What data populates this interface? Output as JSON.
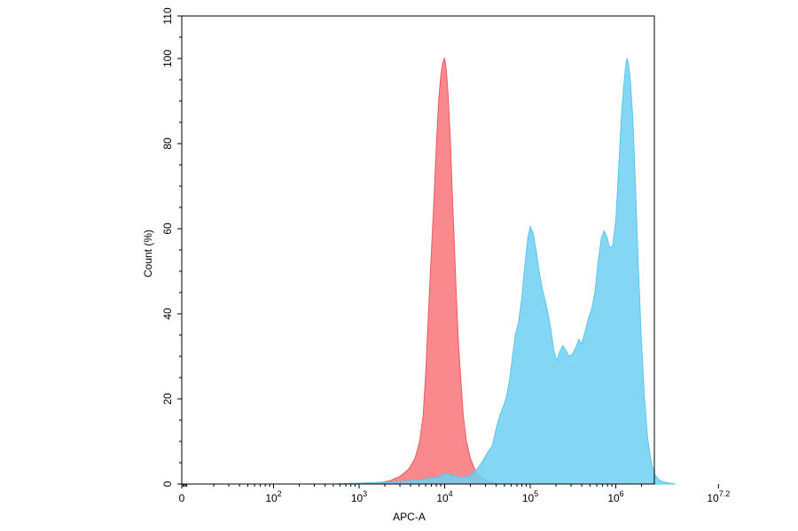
{
  "chart_data": {
    "type": "area",
    "title": "",
    "xlabel": "APC-A",
    "ylabel": "Count (%)",
    "x_scale": "log",
    "xlim": [
      0,
      7.2
    ],
    "ylim": [
      0,
      110
    ],
    "grid": false,
    "legend": "none",
    "y_ticks": [
      {
        "value": 0,
        "label": "0"
      },
      {
        "value": 20,
        "label": "20"
      },
      {
        "value": 40,
        "label": "40"
      },
      {
        "value": 60,
        "label": "60"
      },
      {
        "value": 80,
        "label": "80"
      },
      {
        "value": 100,
        "label": "100"
      },
      {
        "value": 110,
        "label": "110"
      }
    ],
    "x_ticks": [
      {
        "label": "0",
        "base": "",
        "exp": ""
      },
      {
        "label": "",
        "base": "10",
        "exp": "2"
      },
      {
        "label": "",
        "base": "10",
        "exp": "3"
      },
      {
        "label": "",
        "base": "10",
        "exp": "4"
      },
      {
        "label": "",
        "base": "10",
        "exp": "5"
      },
      {
        "label": "",
        "base": "10",
        "exp": "6"
      },
      {
        "label": "",
        "base": "10",
        "exp": "7.2"
      }
    ],
    "series": [
      {
        "color": "#f87478",
        "stroke": "#ea5a62",
        "opacity": 0.85,
        "points": [
          {
            "x": 500,
            "y": 0
          },
          {
            "x": 1700,
            "y": 0.3
          },
          {
            "x": 2300,
            "y": 0.8
          },
          {
            "x": 3000,
            "y": 1.8
          },
          {
            "x": 3800,
            "y": 3.5
          },
          {
            "x": 4500,
            "y": 6
          },
          {
            "x": 5100,
            "y": 10
          },
          {
            "x": 5600,
            "y": 16
          },
          {
            "x": 6000,
            "y": 26
          },
          {
            "x": 6300,
            "y": 35
          },
          {
            "x": 6600,
            "y": 44
          },
          {
            "x": 6900,
            "y": 52
          },
          {
            "x": 7300,
            "y": 62
          },
          {
            "x": 7700,
            "y": 72
          },
          {
            "x": 8100,
            "y": 82
          },
          {
            "x": 8500,
            "y": 90
          },
          {
            "x": 9000,
            "y": 96
          },
          {
            "x": 9500,
            "y": 99
          },
          {
            "x": 10000,
            "y": 100
          },
          {
            "x": 10500,
            "y": 97
          },
          {
            "x": 11000,
            "y": 91
          },
          {
            "x": 11600,
            "y": 82
          },
          {
            "x": 12200,
            "y": 70
          },
          {
            "x": 13000,
            "y": 56
          },
          {
            "x": 13700,
            "y": 44
          },
          {
            "x": 14500,
            "y": 33
          },
          {
            "x": 15500,
            "y": 24
          },
          {
            "x": 16500,
            "y": 16
          },
          {
            "x": 18000,
            "y": 10
          },
          {
            "x": 20000,
            "y": 6
          },
          {
            "x": 23000,
            "y": 3
          },
          {
            "x": 27000,
            "y": 1.5
          },
          {
            "x": 34000,
            "y": 0.5
          },
          {
            "x": 45000,
            "y": 0
          }
        ]
      },
      {
        "color": "#6ed0f2",
        "stroke": "#5ec4ea",
        "opacity": 0.85,
        "points": [
          {
            "x": 500,
            "y": 0
          },
          {
            "x": 1300,
            "y": 0.3
          },
          {
            "x": 3000,
            "y": 0.6
          },
          {
            "x": 5000,
            "y": 1
          },
          {
            "x": 8000,
            "y": 1.5
          },
          {
            "x": 10000,
            "y": 2.5
          },
          {
            "x": 13000,
            "y": 2
          },
          {
            "x": 16000,
            "y": 1.5
          },
          {
            "x": 20000,
            "y": 2
          },
          {
            "x": 24000,
            "y": 3.5
          },
          {
            "x": 28000,
            "y": 5.5
          },
          {
            "x": 32000,
            "y": 7.5
          },
          {
            "x": 36000,
            "y": 9
          },
          {
            "x": 40000,
            "y": 13
          },
          {
            "x": 44000,
            "y": 16
          },
          {
            "x": 48000,
            "y": 18
          },
          {
            "x": 52000,
            "y": 20
          },
          {
            "x": 57000,
            "y": 24
          },
          {
            "x": 62000,
            "y": 30
          },
          {
            "x": 67000,
            "y": 35
          },
          {
            "x": 73000,
            "y": 38
          },
          {
            "x": 80000,
            "y": 44
          },
          {
            "x": 87000,
            "y": 52
          },
          {
            "x": 94000,
            "y": 58
          },
          {
            "x": 100000,
            "y": 60.5
          },
          {
            "x": 108000,
            "y": 59
          },
          {
            "x": 117000,
            "y": 55
          },
          {
            "x": 127000,
            "y": 50
          },
          {
            "x": 138000,
            "y": 46
          },
          {
            "x": 150000,
            "y": 43
          },
          {
            "x": 162000,
            "y": 40
          },
          {
            "x": 175000,
            "y": 36
          },
          {
            "x": 190000,
            "y": 31
          },
          {
            "x": 205000,
            "y": 29
          },
          {
            "x": 220000,
            "y": 31
          },
          {
            "x": 240000,
            "y": 32.5
          },
          {
            "x": 260000,
            "y": 31.5
          },
          {
            "x": 285000,
            "y": 30
          },
          {
            "x": 310000,
            "y": 30.5
          },
          {
            "x": 340000,
            "y": 32
          },
          {
            "x": 370000,
            "y": 34
          },
          {
            "x": 400000,
            "y": 33
          },
          {
            "x": 440000,
            "y": 36
          },
          {
            "x": 480000,
            "y": 39
          },
          {
            "x": 520000,
            "y": 41
          },
          {
            "x": 570000,
            "y": 45
          },
          {
            "x": 620000,
            "y": 52
          },
          {
            "x": 680000,
            "y": 58
          },
          {
            "x": 730000,
            "y": 59.5
          },
          {
            "x": 790000,
            "y": 58
          },
          {
            "x": 850000,
            "y": 55.5
          },
          {
            "x": 920000,
            "y": 56
          },
          {
            "x": 1000000,
            "y": 62
          },
          {
            "x": 1080000,
            "y": 74
          },
          {
            "x": 1160000,
            "y": 86
          },
          {
            "x": 1230000,
            "y": 93
          },
          {
            "x": 1300000,
            "y": 98
          },
          {
            "x": 1350000,
            "y": 100
          },
          {
            "x": 1400000,
            "y": 99
          },
          {
            "x": 1480000,
            "y": 95
          },
          {
            "x": 1580000,
            "y": 86
          },
          {
            "x": 1700000,
            "y": 70
          },
          {
            "x": 1830000,
            "y": 52
          },
          {
            "x": 1980000,
            "y": 35
          },
          {
            "x": 2150000,
            "y": 21
          },
          {
            "x": 2350000,
            "y": 11
          },
          {
            "x": 2600000,
            "y": 5
          },
          {
            "x": 2900000,
            "y": 2
          },
          {
            "x": 3300000,
            "y": 0.8
          },
          {
            "x": 4000000,
            "y": 0.3
          },
          {
            "x": 5000000,
            "y": 0
          }
        ]
      }
    ]
  }
}
